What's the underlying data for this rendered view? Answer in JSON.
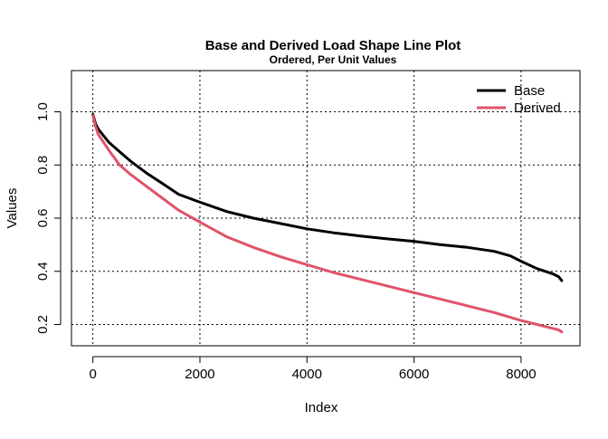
{
  "chart_data": {
    "type": "line",
    "title": "Base and Derived Load Shape Line Plot",
    "subtitle": "Ordered, Per Unit Values",
    "xlabel": "Index",
    "ylabel": "Values",
    "xlim": [
      -400,
      9100
    ],
    "ylim": [
      0.12,
      1.155
    ],
    "x_ticks": [
      0,
      2000,
      4000,
      6000,
      8000
    ],
    "y_ticks": [
      0.2,
      0.4,
      0.6,
      0.8,
      1.0
    ],
    "x_tick_labels": [
      "0",
      "2000",
      "4000",
      "6000",
      "8000"
    ],
    "y_tick_labels": [
      "0.2",
      "0.4",
      "0.6",
      "0.8",
      "1.0"
    ],
    "grid": true,
    "legend_position": "top-right",
    "series": [
      {
        "name": "Base",
        "color": "#000000",
        "x": [
          0,
          50,
          100,
          200,
          300,
          500,
          700,
          1000,
          1300,
          1600,
          2000,
          2500,
          3000,
          3500,
          4000,
          4500,
          5000,
          5500,
          6000,
          6500,
          7000,
          7500,
          7800,
          8000,
          8300,
          8600,
          8700,
          8760
        ],
        "y": [
          0.99,
          0.955,
          0.935,
          0.91,
          0.885,
          0.85,
          0.815,
          0.77,
          0.73,
          0.69,
          0.66,
          0.625,
          0.6,
          0.58,
          0.56,
          0.545,
          0.533,
          0.522,
          0.513,
          0.5,
          0.49,
          0.475,
          0.458,
          0.438,
          0.41,
          0.39,
          0.38,
          0.365
        ]
      },
      {
        "name": "Derived",
        "color": "#DF536B",
        "x": [
          0,
          50,
          100,
          200,
          300,
          500,
          700,
          1000,
          1300,
          1600,
          2000,
          2500,
          3000,
          3500,
          4000,
          4500,
          5000,
          5500,
          6000,
          6500,
          7000,
          7500,
          8000,
          8300,
          8600,
          8700,
          8760
        ],
        "y": [
          0.985,
          0.945,
          0.915,
          0.885,
          0.855,
          0.8,
          0.765,
          0.72,
          0.675,
          0.63,
          0.585,
          0.53,
          0.49,
          0.455,
          0.425,
          0.395,
          0.37,
          0.345,
          0.32,
          0.295,
          0.27,
          0.245,
          0.215,
          0.2,
          0.185,
          0.18,
          0.172
        ]
      }
    ]
  }
}
